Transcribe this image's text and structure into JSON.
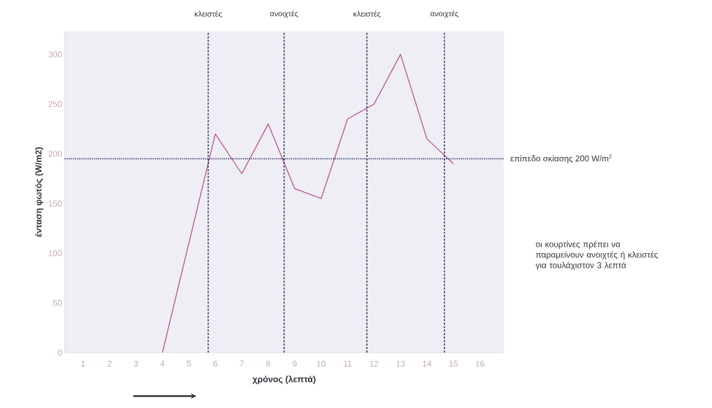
{
  "chart_data": {
    "type": "line",
    "xlabel": "χρόνος (λεπτά)",
    "ylabel": "ένταση φωτός (W/m2)",
    "x": [
      4,
      6,
      7,
      8,
      9,
      10,
      11,
      12,
      13,
      14,
      15
    ],
    "series": [
      {
        "color": "#c0508c",
        "values": [
          0,
          220,
          180,
          230,
          165,
          155,
          235,
          250,
          300,
          215,
          190
        ]
      }
    ],
    "xlim": [
      0.3,
      16.9
    ],
    "xticks": [
      1,
      2,
      3,
      4,
      5,
      6,
      7,
      8,
      9,
      10,
      11,
      12,
      13,
      14,
      15,
      16
    ],
    "ylim": [
      0,
      323
    ],
    "yticks": [
      0,
      50,
      100,
      150,
      200,
      250,
      300
    ],
    "marker": "none",
    "line_style": "solid",
    "ref_lines": [
      {
        "axis": "y",
        "value": 195,
        "label": "επίπεδο σκίασης 200 W/m$^{2}$",
        "color": "#1f2a5c",
        "line_style": "dotted"
      },
      {
        "axis": "x",
        "value": 5.73,
        "label": "κλειστές",
        "color": "#1f2a5c",
        "line_style": "dashed"
      },
      {
        "axis": "x",
        "value": 8.6,
        "label": "ανοιχτές",
        "color": "#1f2a5c",
        "line_style": "dashed"
      },
      {
        "axis": "x",
        "value": 11.73,
        "label": "κλειστές",
        "color": "#1f2a5c",
        "line_style": "dashed"
      },
      {
        "axis": "x",
        "value": 14.66,
        "label": "ανοιχτές",
        "color": "#1f2a5c",
        "line_style": "dashed"
      }
    ],
    "annotations": [
      "οι κουρτίνες πρέπει να παραμείνουν ανοιχτές ή κλειστές για τουλάχιστον 3 λεπτά"
    ]
  }
}
